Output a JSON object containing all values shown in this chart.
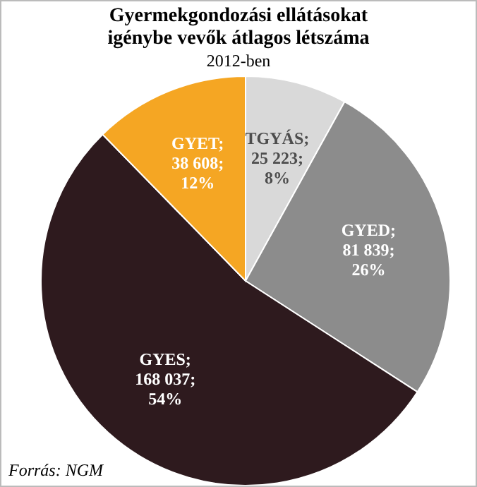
{
  "chart_data": {
    "type": "pie",
    "title": "Gyermekgondozási ellátásokat igénybe vevők átlagos létszáma",
    "subtitle": "2012-ben",
    "categories": [
      "TGYÁS",
      "GYED",
      "GYES",
      "GYET"
    ],
    "values": [
      25223,
      81839,
      168037,
      38608
    ],
    "colors": [
      "#d9d9d9",
      "#8c8c8c",
      "#2e1a1e",
      "#f5a623"
    ],
    "value_labels": [
      ";\n25 223;\n8%",
      ";\n81 839;\n26%",
      ";\n168 037;\n54%",
      ";\n38 608;\n12%"
    ],
    "annotations": [
      "Forrás: NGM"
    ],
    "legend": false
  }
}
